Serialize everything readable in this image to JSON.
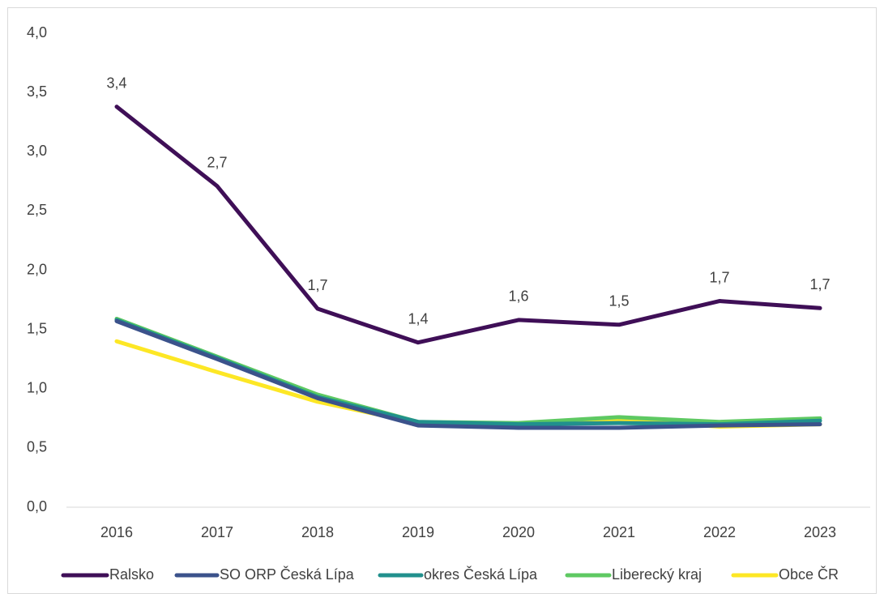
{
  "chart_data": {
    "type": "line",
    "categories": [
      "2016",
      "2017",
      "2018",
      "2019",
      "2020",
      "2021",
      "2022",
      "2023"
    ],
    "series": [
      {
        "name": "Ralsko",
        "color": "#3f0f57",
        "values": [
          3.38,
          2.71,
          1.675,
          1.39,
          1.58,
          1.54,
          1.74,
          1.68
        ],
        "value_labels": [
          "3,4",
          "2,7",
          "1,7",
          "1,4",
          "1,6",
          "1,5",
          "1,7",
          "1,7"
        ]
      },
      {
        "name": "SO ORP Česká Lípa",
        "color": "#3b528b",
        "values": [
          1.57,
          1.25,
          0.92,
          0.69,
          0.67,
          0.67,
          0.69,
          0.7
        ]
      },
      {
        "name": "okres Česká Lípa",
        "color": "#21908d",
        "values": [
          1.58,
          1.26,
          0.93,
          0.72,
          0.7,
          0.71,
          0.7,
          0.73
        ]
      },
      {
        "name": "Liberecký kraj",
        "color": "#5ec962",
        "values": [
          1.59,
          1.27,
          0.95,
          0.72,
          0.71,
          0.76,
          0.72,
          0.75
        ]
      },
      {
        "name": "Obce ČR",
        "color": "#fde725",
        "values": [
          1.4,
          1.14,
          0.89,
          0.71,
          0.69,
          0.74,
          0.68,
          0.7
        ]
      }
    ],
    "ylim": [
      0,
      4
    ],
    "yticks": [
      {
        "value": 0,
        "label": "0,0"
      },
      {
        "value": 0.5,
        "label": "0,5"
      },
      {
        "value": 1,
        "label": "1,0"
      },
      {
        "value": 1.5,
        "label": "1,5"
      },
      {
        "value": 2,
        "label": "2,0"
      },
      {
        "value": 2.5,
        "label": "2,5"
      },
      {
        "value": 3,
        "label": "3,0"
      },
      {
        "value": 3.5,
        "label": "3,5"
      },
      {
        "value": 4,
        "label": "4,0"
      }
    ],
    "grid": false
  }
}
